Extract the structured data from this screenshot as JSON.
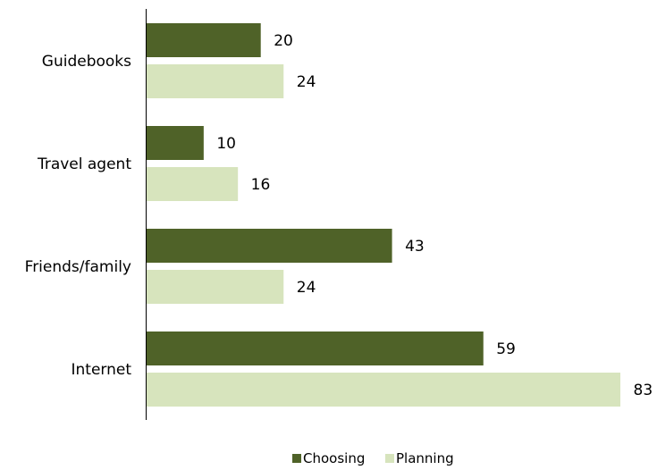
{
  "chart_data": {
    "type": "bar",
    "orientation": "horizontal",
    "categories": [
      "Guidebooks",
      "Travel agent",
      "Friends/family",
      "Internet"
    ],
    "series": [
      {
        "name": "Choosing",
        "color": "#4f6228",
        "values": [
          20,
          10,
          43,
          59
        ]
      },
      {
        "name": "Planning",
        "color": "#d7e4bd",
        "values": [
          24,
          16,
          24,
          83
        ]
      }
    ],
    "title": "",
    "xlabel": "",
    "ylabel": "",
    "xlim": [
      0,
      83
    ],
    "grid": false,
    "legend_position": "bottom",
    "data_labels": true
  }
}
